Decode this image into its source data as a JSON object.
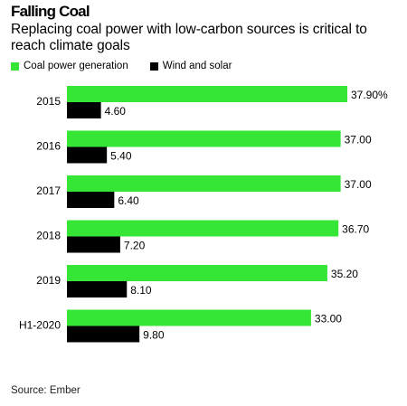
{
  "header": {
    "title": "Falling Coal",
    "subtitle": "Replacing coal power with low-carbon sources is critical to reach climate goals"
  },
  "legend": [
    {
      "label": "Coal power generation",
      "color": "#36e636"
    },
    {
      "label": "Wind and solar",
      "color": "#000000"
    }
  ],
  "source": "Source: Ember",
  "chart_data": {
    "type": "bar",
    "orientation": "horizontal",
    "categories": [
      "2015",
      "2016",
      "2017",
      "2018",
      "2019",
      "H1-2020"
    ],
    "series": [
      {
        "name": "Coal power generation",
        "color": "#36e636",
        "values": [
          37.9,
          37.0,
          37.0,
          36.7,
          35.2,
          33.0
        ],
        "labels": [
          "37.90%",
          "37.00",
          "37.00",
          "36.70",
          "35.20",
          "33.00"
        ]
      },
      {
        "name": "Wind and solar",
        "color": "#000000",
        "values": [
          4.6,
          5.4,
          6.4,
          7.2,
          8.1,
          9.8
        ],
        "labels": [
          "4.60",
          "5.40",
          "6.40",
          "7.20",
          "8.10",
          "9.80"
        ]
      }
    ],
    "xlim": [
      0,
      37.9
    ],
    "title": "Falling Coal",
    "subtitle": "Replacing coal power with low-carbon sources is critical to reach climate goals",
    "legend_position": "top-left"
  }
}
